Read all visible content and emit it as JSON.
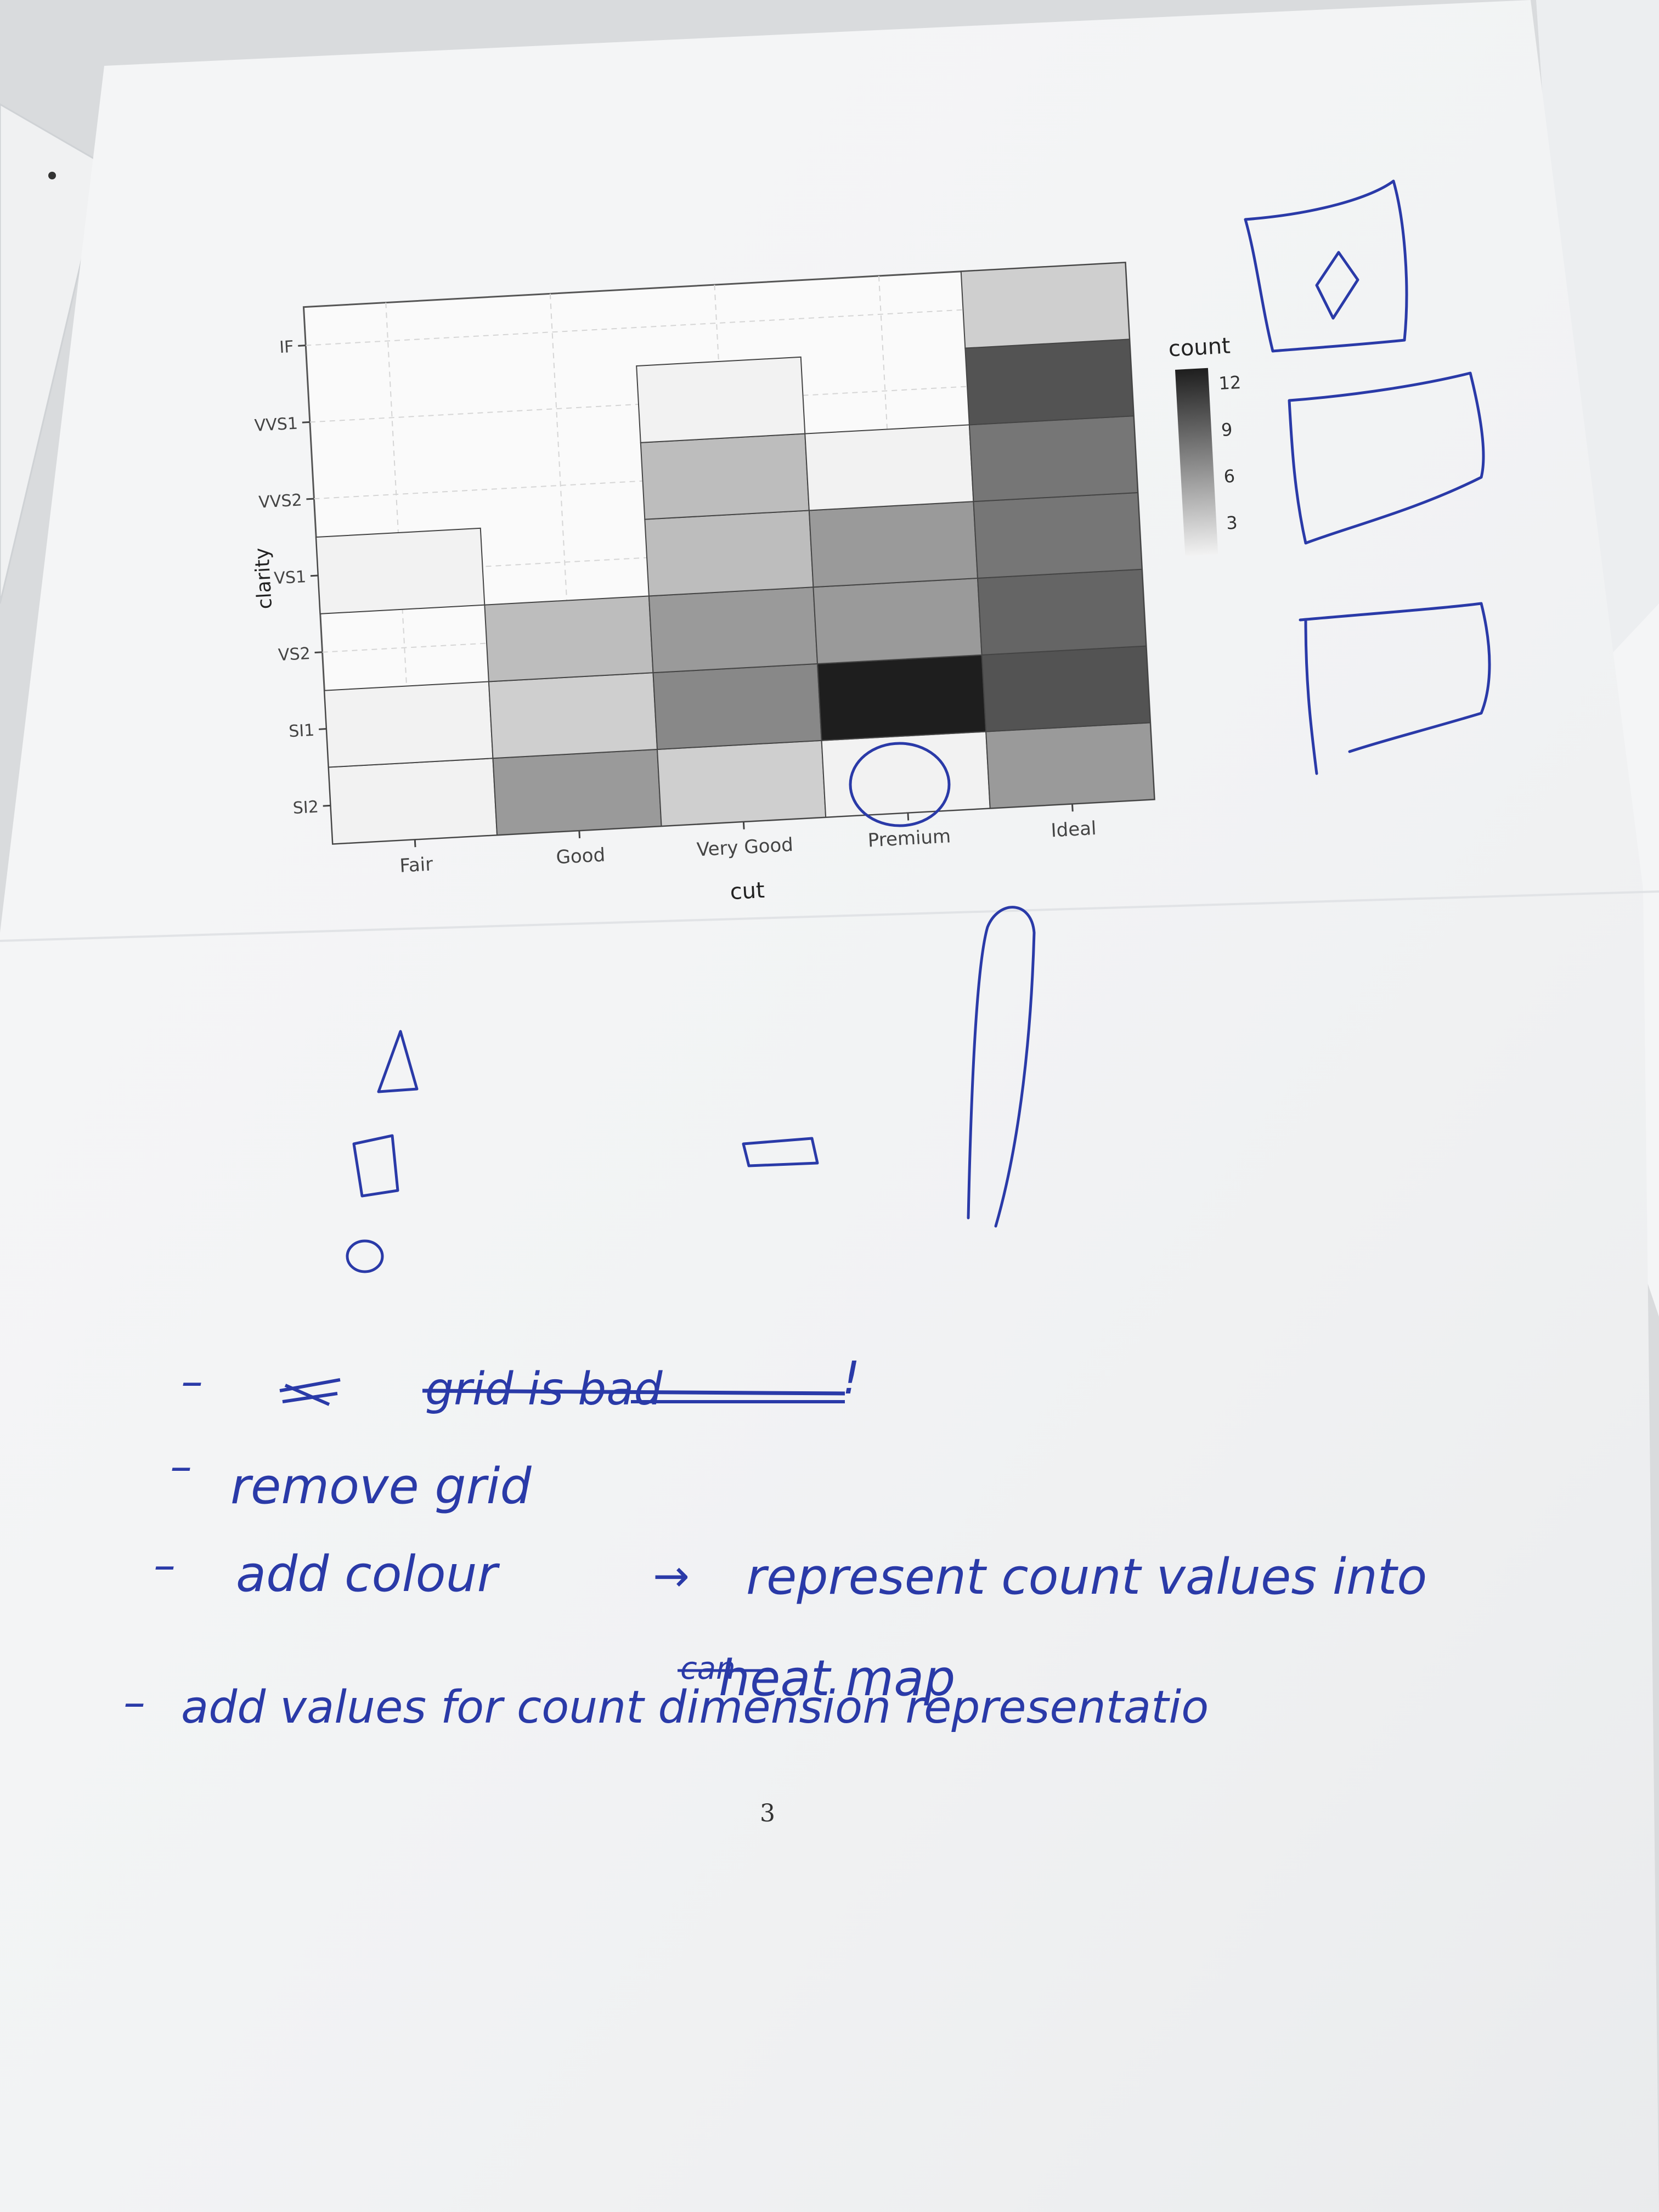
{
  "chart_data": {
    "type": "heatmap",
    "xlabel": "cut",
    "ylabel": "clarity",
    "categories_x": [
      "Fair",
      "Good",
      "Very Good",
      "Premium",
      "Ideal"
    ],
    "categories_y": [
      "SI2",
      "SI1",
      "VS2",
      "VS1",
      "VVS2",
      "VVS1",
      "IF"
    ],
    "legend_title": "count",
    "legend_ticks": [
      "3",
      "6",
      "9",
      "12"
    ],
    "legend_range": [
      1,
      13
    ],
    "grid": true,
    "legend_position": "right",
    "cells": [
      {
        "x": "Fair",
        "y": "SI2",
        "count": 1
      },
      {
        "x": "Fair",
        "y": "SI1",
        "count": 1
      },
      {
        "x": "Fair",
        "y": "VS1",
        "count": 1
      },
      {
        "x": "Good",
        "y": "SI2",
        "count": 6
      },
      {
        "x": "Good",
        "y": "SI1",
        "count": 3
      },
      {
        "x": "Good",
        "y": "VS2",
        "count": 4
      },
      {
        "x": "Very Good",
        "y": "SI2",
        "count": 3
      },
      {
        "x": "Very Good",
        "y": "SI1",
        "count": 7
      },
      {
        "x": "Very Good",
        "y": "VS2",
        "count": 6
      },
      {
        "x": "Very Good",
        "y": "VS1",
        "count": 4
      },
      {
        "x": "Very Good",
        "y": "VVS2",
        "count": 4
      },
      {
        "x": "Very Good",
        "y": "VVS1",
        "count": 1
      },
      {
        "x": "Premium",
        "y": "SI2",
        "count": 1
      },
      {
        "x": "Premium",
        "y": "SI1",
        "count": 13
      },
      {
        "x": "Premium",
        "y": "VS2",
        "count": 6
      },
      {
        "x": "Premium",
        "y": "VS1",
        "count": 6
      },
      {
        "x": "Premium",
        "y": "VVS2",
        "count": 1
      },
      {
        "x": "Ideal",
        "y": "SI2",
        "count": 6
      },
      {
        "x": "Ideal",
        "y": "SI1",
        "count": 10
      },
      {
        "x": "Ideal",
        "y": "VS2",
        "count": 9
      },
      {
        "x": "Ideal",
        "y": "VS1",
        "count": 8
      },
      {
        "x": "Ideal",
        "y": "VVS2",
        "count": 8
      },
      {
        "x": "Ideal",
        "y": "VVS1",
        "count": 10
      },
      {
        "x": "Ideal",
        "y": "IF",
        "count": 3
      }
    ]
  },
  "handwriting": {
    "color": "#2a3aa8",
    "line1_struck": "grid is bad",
    "line1_mark": "!",
    "line2": "remove grid",
    "line3": "add colour",
    "line3_arrow": "→",
    "line3_b": "represent count values into",
    "line3_c": "heat map",
    "line4": "add values for count dimension representatio",
    "line4_struck": "can"
  },
  "page_number": "3"
}
